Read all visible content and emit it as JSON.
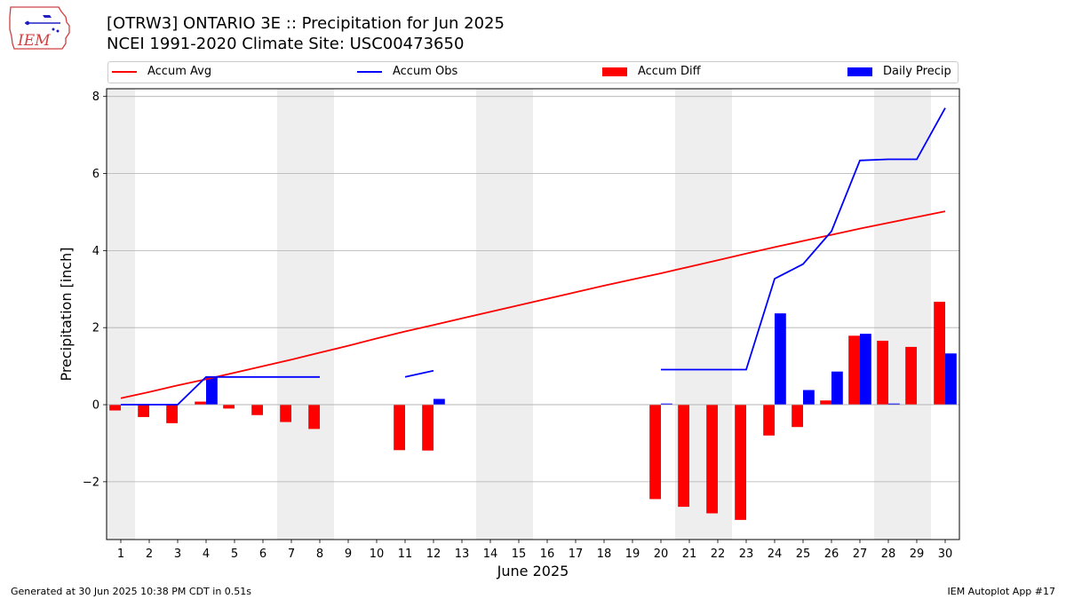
{
  "title": "[OTRW3] ONTARIO 3E :: Precipitation for Jun 2025",
  "subtitle": "NCEI 1991-2020 Climate Site: USC00473650",
  "logo_text": "IEM",
  "footer_left": "Generated at 30 Jun 2025 10:38 PM CDT in 0.51s",
  "footer_right": "IEM Autoplot App #17",
  "colors": {
    "accum_avg": "#ff0000",
    "accum_obs": "#0000ff",
    "accum_diff": "#ff0000",
    "daily_precip": "#0000ff",
    "weekend_shade": "#eeeeee",
    "grid": "#b0b0b0"
  },
  "legend": [
    {
      "label": "Accum Avg",
      "kind": "line",
      "color": "#ff0000"
    },
    {
      "label": "Accum Obs",
      "kind": "line",
      "color": "#0000ff"
    },
    {
      "label": "Accum Diff",
      "kind": "bar",
      "color": "#ff0000"
    },
    {
      "label": "Daily Precip",
      "kind": "bar",
      "color": "#0000ff"
    }
  ],
  "chart_data": {
    "type": "bar",
    "xlabel": "June 2025",
    "ylabel": "Precipitation [inch]",
    "ylim": [
      -3.5,
      8.2
    ],
    "yticks": [
      -2,
      0,
      2,
      4,
      6,
      8
    ],
    "ytick_labels": [
      "−2",
      "0",
      "2",
      "4",
      "6",
      "8"
    ],
    "grid": "y",
    "legend_position": "top",
    "days": [
      1,
      2,
      3,
      4,
      5,
      6,
      7,
      8,
      9,
      10,
      11,
      12,
      13,
      14,
      15,
      16,
      17,
      18,
      19,
      20,
      21,
      22,
      23,
      24,
      25,
      26,
      27,
      28,
      29,
      30
    ],
    "weekend_days": [
      1,
      7,
      8,
      14,
      15,
      21,
      22,
      28,
      29
    ],
    "accum_avg": [
      0.17,
      0.33,
      0.5,
      0.66,
      0.83,
      1.0,
      1.17,
      1.35,
      1.53,
      1.72,
      1.9,
      2.07,
      2.24,
      2.41,
      2.58,
      2.75,
      2.92,
      3.09,
      3.25,
      3.41,
      3.58,
      3.75,
      3.92,
      4.09,
      4.25,
      4.41,
      4.57,
      4.72,
      4.87,
      5.02
    ],
    "accum_obs": [
      0.0,
      0.0,
      0.0,
      0.72,
      0.72,
      0.72,
      0.72,
      0.72,
      null,
      null,
      0.72,
      0.88,
      null,
      null,
      null,
      null,
      null,
      null,
      null,
      0.91,
      0.91,
      0.91,
      0.91,
      3.27,
      3.65,
      4.5,
      6.34,
      6.37,
      6.37,
      7.7
    ],
    "accum_diff": [
      -0.15,
      -0.32,
      -0.48,
      0.08,
      -0.1,
      -0.27,
      -0.45,
      -0.63,
      null,
      null,
      -1.18,
      -1.19,
      null,
      null,
      null,
      null,
      null,
      null,
      null,
      -2.45,
      -2.65,
      -2.82,
      -2.99,
      -0.8,
      -0.58,
      0.11,
      1.79,
      1.66,
      1.5,
      2.67
    ],
    "daily_precip": [
      0.0,
      0.0,
      0.0,
      0.72,
      0.0,
      0.0,
      0.0,
      0.0,
      null,
      null,
      0.0,
      0.15,
      null,
      null,
      null,
      null,
      null,
      null,
      null,
      0.03,
      0.0,
      0.0,
      0.0,
      2.37,
      0.38,
      0.86,
      1.84,
      0.03,
      0.0,
      1.33
    ]
  }
}
